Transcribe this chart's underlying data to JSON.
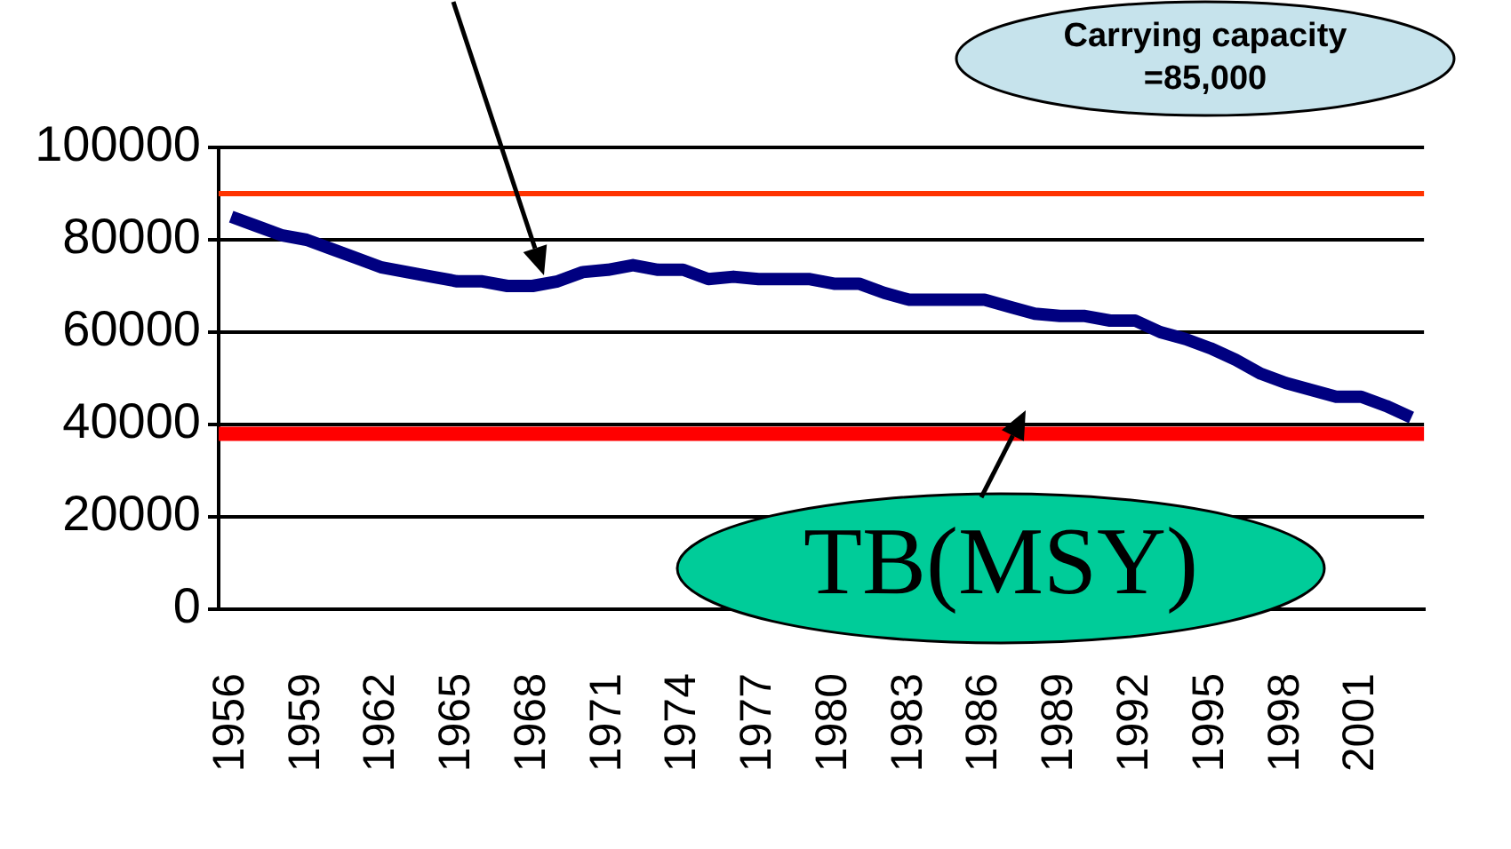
{
  "chart_data": {
    "type": "line",
    "categories": [
      "1956",
      null,
      null,
      "1959",
      null,
      null,
      "1962",
      null,
      null,
      "1965",
      null,
      null,
      "1968",
      null,
      null,
      "1971",
      null,
      null,
      "1974",
      null,
      null,
      "1977",
      null,
      null,
      "1980",
      null,
      null,
      "1983",
      null,
      null,
      "1986",
      null,
      null,
      "1989",
      null,
      null,
      "1992",
      null,
      null,
      "1995",
      null,
      null,
      "1998",
      null,
      null,
      "2001",
      null,
      null
    ],
    "series": [
      {
        "color": "#000080",
        "values": [
          85000,
          83000,
          81000,
          80000,
          78000,
          76000,
          74000,
          73000,
          72000,
          71000,
          71000,
          70000,
          70000,
          71000,
          73000,
          73500,
          74500,
          73500,
          73500,
          71500,
          72000,
          71500,
          71500,
          71500,
          70500,
          70500,
          68500,
          67000,
          67000,
          67000,
          67000,
          65500,
          64000,
          63500,
          63500,
          62500,
          62500,
          60000,
          58500,
          56500,
          54000,
          51000,
          49000,
          47500,
          46000,
          46000,
          44000,
          41500
        ]
      }
    ],
    "ylim": [
      0,
      100000
    ],
    "yticks": [
      0,
      20000,
      40000,
      60000,
      80000,
      100000
    ],
    "grid": "y",
    "legend": false,
    "marker": "none",
    "line_style": "solid",
    "annotations": [
      "Carrying capacity\n=85,000"
    ],
    "ref_lines": [
      {
        "axis": "y",
        "value": 90000,
        "color": "#ff3300"
      },
      {
        "axis": "y",
        "value": 38000,
        "label": "TB(MSY)",
        "color": "#ff0000"
      }
    ]
  }
}
